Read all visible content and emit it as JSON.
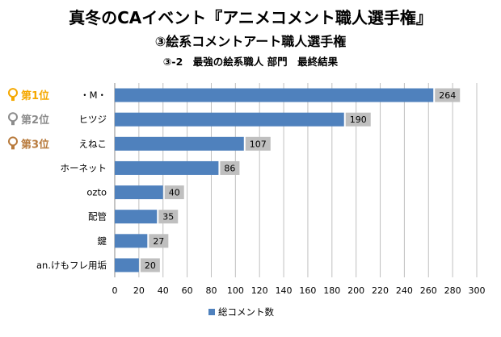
{
  "header": {
    "title": "真冬のCAイベント『アニメコメント職人選手権』",
    "subtitle": "③絵系コメントアート職人選手権",
    "section": "③-2　最強の絵系職人 部門　最終結果"
  },
  "ranks": [
    {
      "label": "第1位",
      "color": "#f5a800"
    },
    {
      "label": "第2位",
      "color": "#8c8c8c"
    },
    {
      "label": "第3位",
      "color": "#b87a3c"
    }
  ],
  "colors": {
    "bar": "#4f81bd",
    "label_box": "#bfbfbf",
    "grid": "#c0c0c0"
  },
  "chart_data": {
    "type": "bar",
    "orientation": "horizontal",
    "categories": [
      "・M・",
      "ヒツジ",
      "えねこ",
      "ホーネット",
      "ozto",
      "配管",
      "鍵",
      "an.けもフレ用垢"
    ],
    "series": [
      {
        "name": "総コメント数",
        "values": [
          264,
          190,
          107,
          86,
          40,
          35,
          27,
          20
        ]
      }
    ],
    "xlim": [
      0,
      300
    ],
    "xticks": [
      0,
      20,
      40,
      60,
      80,
      100,
      120,
      140,
      160,
      180,
      200,
      220,
      240,
      260,
      280,
      300
    ],
    "grid": true,
    "legend": "bottom"
  }
}
